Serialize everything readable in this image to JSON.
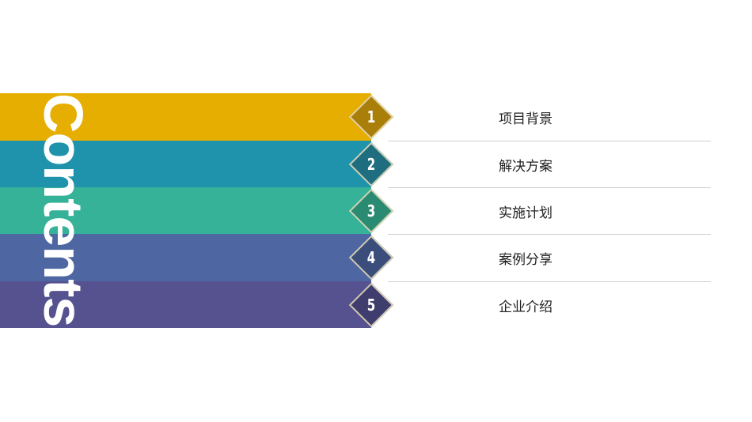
{
  "title": "Contents",
  "items": [
    {
      "number": "1",
      "label": "项目背景",
      "bar_color": "#e6ae00",
      "badge_color": "#a97f0a"
    },
    {
      "number": "2",
      "label": "解决方案",
      "bar_color": "#1f93ab",
      "badge_color": "#1f6e80"
    },
    {
      "number": "3",
      "label": "实施计划",
      "bar_color": "#36b298",
      "badge_color": "#2a8a72"
    },
    {
      "number": "4",
      "label": "案例分享",
      "bar_color": "#4e66a1",
      "badge_color": "#3b4d7a"
    },
    {
      "number": "5",
      "label": "企业介绍",
      "bar_color": "#55528f",
      "badge_color": "#3f3d6e"
    }
  ]
}
